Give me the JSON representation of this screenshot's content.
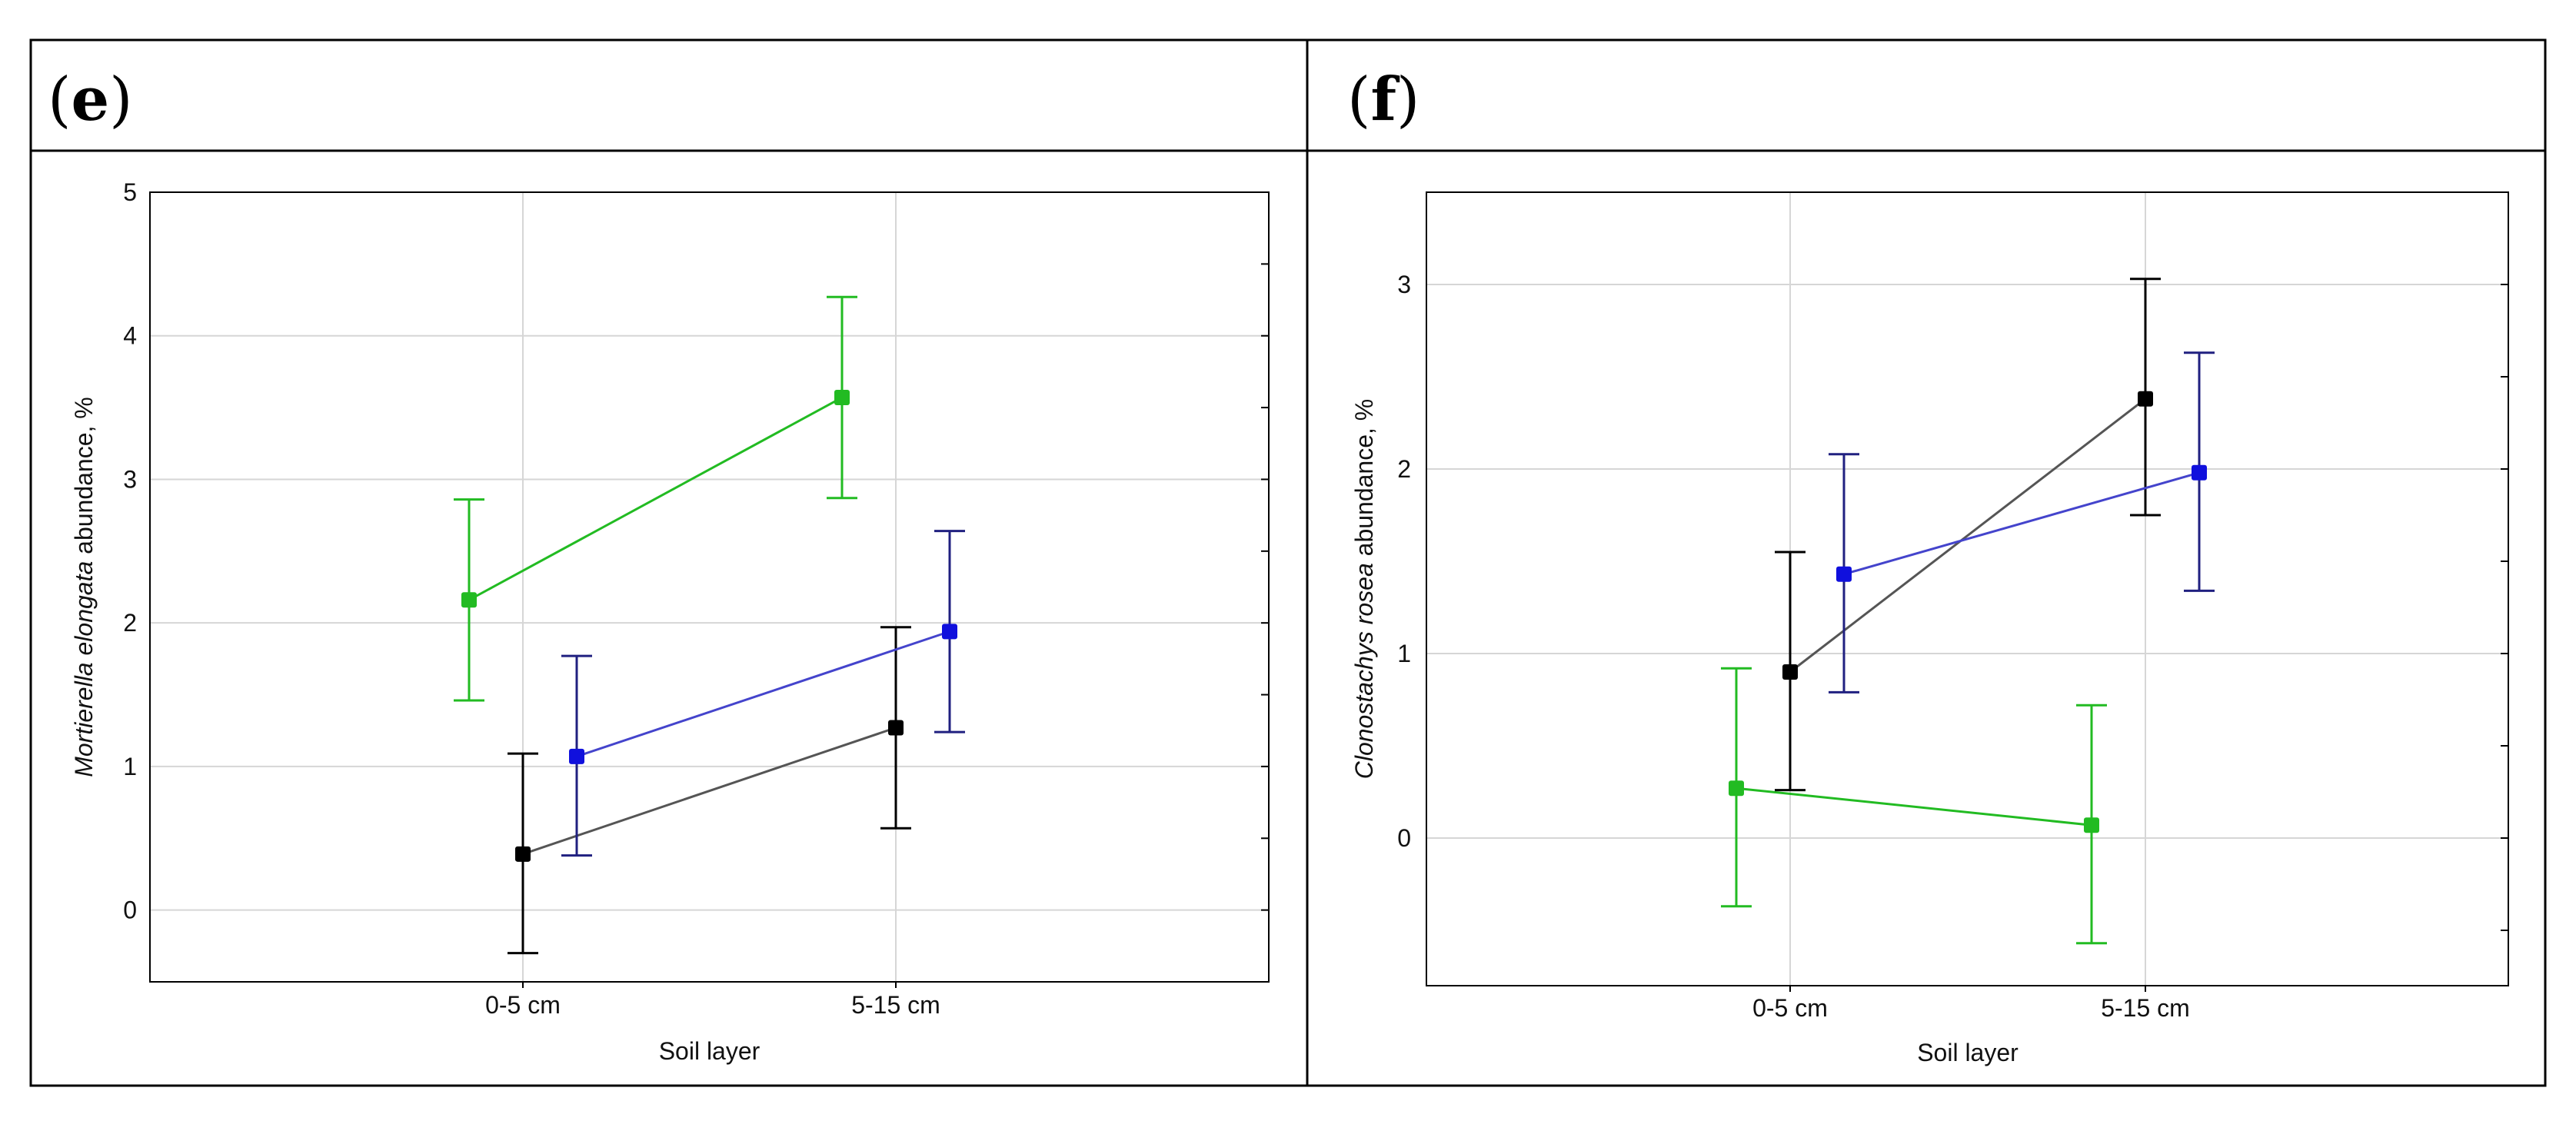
{
  "panels": [
    {
      "id": "e",
      "label_letter": "e",
      "chart_data": {
        "type": "line",
        "title": "",
        "xlabel": "Soil layer",
        "ylabel_italic": "Mortierella elongata",
        "ylabel_rest": " abundance, %",
        "categories": [
          "0-5 cm",
          "5-15 cm"
        ],
        "ylim": [
          -0.5,
          5
        ],
        "yticks": [
          0,
          1,
          2,
          3,
          4,
          5
        ],
        "grid": true,
        "series": [
          {
            "name": "green",
            "color": "#22bb22",
            "offset": -1,
            "values": [
              2.16,
              3.57
            ],
            "lower": [
              1.46,
              2.87
            ],
            "upper": [
              2.86,
              4.27
            ]
          },
          {
            "name": "black",
            "color": "#000000",
            "line_color": "#555555",
            "offset": 0,
            "values": [
              0.39,
              1.27
            ],
            "lower": [
              -0.3,
              0.57
            ],
            "upper": [
              1.09,
              1.97
            ]
          },
          {
            "name": "blue",
            "color": "#1010dd",
            "line_color": "#4444cc",
            "err_color": "#202080",
            "offset": 1,
            "values": [
              1.07,
              1.94
            ],
            "lower": [
              0.38,
              1.24
            ],
            "upper": [
              1.77,
              2.64
            ]
          }
        ]
      }
    },
    {
      "id": "f",
      "label_letter": "f",
      "chart_data": {
        "type": "line",
        "title": "",
        "xlabel": "Soil layer",
        "ylabel_italic": "Clonostachys rosea",
        "ylabel_rest": " abundance, %",
        "categories": [
          "0-5 cm",
          "5-15 cm"
        ],
        "ylim": [
          -0.8,
          3.5
        ],
        "yticks": [
          0,
          1,
          2,
          3
        ],
        "grid": true,
        "series": [
          {
            "name": "green",
            "color": "#22bb22",
            "offset": -1,
            "values": [
              0.27,
              0.07
            ],
            "lower": [
              -0.37,
              -0.57
            ],
            "upper": [
              0.92,
              0.72
            ]
          },
          {
            "name": "black",
            "color": "#000000",
            "line_color": "#555555",
            "offset": 0,
            "values": [
              0.9,
              2.38
            ],
            "lower": [
              0.26,
              1.75
            ],
            "upper": [
              1.55,
              3.03
            ]
          },
          {
            "name": "blue",
            "color": "#1010dd",
            "line_color": "#4444cc",
            "err_color": "#202080",
            "offset": 1,
            "values": [
              1.43,
              1.98
            ],
            "lower": [
              0.79,
              1.34
            ],
            "upper": [
              2.08,
              2.63
            ]
          }
        ]
      }
    }
  ]
}
